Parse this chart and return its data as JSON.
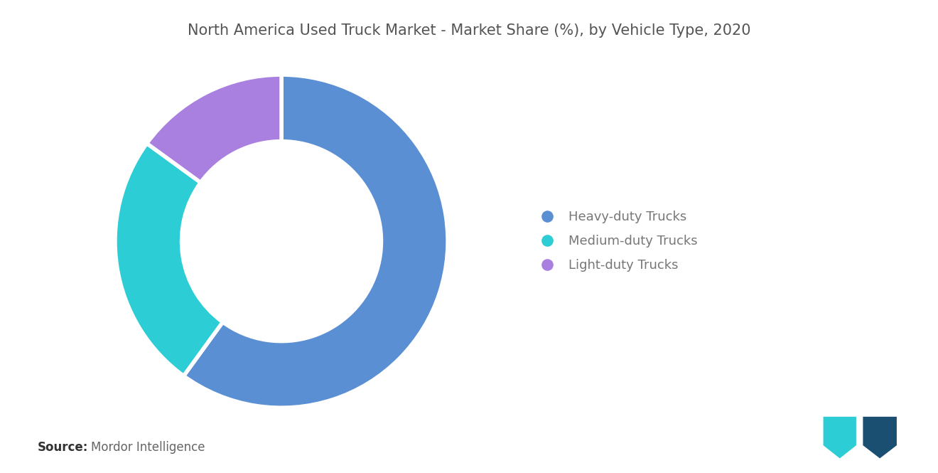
{
  "title": "North America Used Truck Market - Market Share (%), by Vehicle Type, 2020",
  "labels": [
    "Heavy-duty Trucks",
    "Medium-duty Trucks",
    "Light-duty Trucks"
  ],
  "values": [
    60,
    25,
    15
  ],
  "colors": [
    "#5B8FD4",
    "#2DCDD6",
    "#A97FE0"
  ],
  "donut_width": 0.4,
  "background_color": "#ffffff",
  "title_color": "#555555",
  "title_fontsize": 15,
  "legend_fontsize": 13,
  "legend_text_color": "#777777",
  "source_bold": "Source:",
  "source_text": "Mordor Intelligence",
  "source_fontsize": 12,
  "logo_color1": "#2DCDD6",
  "logo_color2": "#1B4F72",
  "wedge_edgecolor": "#ffffff",
  "wedge_linewidth": 4
}
